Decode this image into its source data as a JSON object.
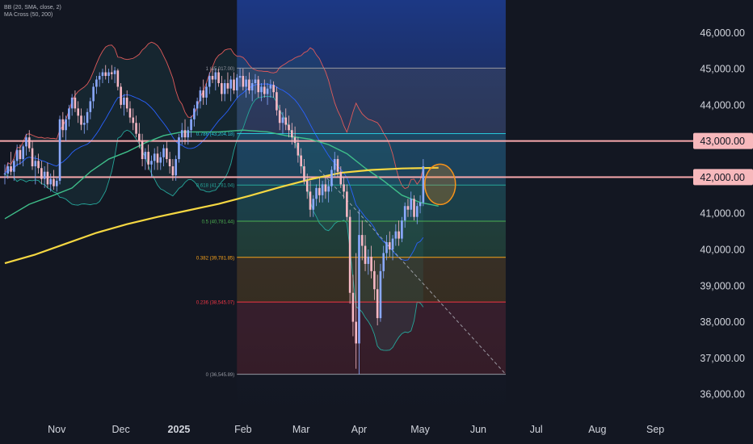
{
  "legend": {
    "bb": "BB (20, SMA, close, 2)",
    "ma": "MA Cross (50, 200)"
  },
  "colors": {
    "background": "#131722",
    "up": "#8aa9ff",
    "down": "#f7b8c4",
    "sma200": "#f5d742",
    "sma50": "#3fbf8a",
    "bb_basis": "#2962ff",
    "bb_band": "#e05a5a",
    "bb_band_lower": "#26a69a",
    "level_line": "#f7a8ad",
    "fib_zone": "#1e3a7a",
    "highlight": "#f7931a"
  },
  "chart_data": {
    "type": "candlestick",
    "title": "",
    "xlabel": "",
    "ylabel": "",
    "ylim": [
      35400,
      46900
    ],
    "y_ticks": [
      "46,000.00",
      "45,000.00",
      "44,000.00",
      "43,000.00",
      "42,000.00",
      "41,000.00",
      "40,000.00",
      "39,000.00",
      "38,000.00",
      "37,000.00",
      "36,000.00"
    ],
    "y_tick_values": [
      46000,
      45000,
      44000,
      43000,
      42000,
      41000,
      40000,
      39000,
      38000,
      37000,
      36000
    ],
    "highlighted_levels": [
      {
        "value": 43000,
        "label": "43,000.00"
      },
      {
        "value": 42000,
        "label": "42,000.00"
      }
    ],
    "x_labels": [
      "Nov",
      "Dec",
      "2025",
      "Feb",
      "Mar",
      "Apr",
      "May",
      "Jun",
      "Jul",
      "Aug",
      "Sep"
    ],
    "x_label_index": [
      17,
      38,
      57,
      78,
      97,
      116,
      136,
      155,
      174,
      194,
      213
    ],
    "x_label_bold": [
      false,
      false,
      true,
      false,
      false,
      false,
      false,
      false,
      false,
      false,
      false
    ],
    "fibonacci": {
      "start_index": 76,
      "end_index": 164,
      "levels": [
        {
          "ratio": "1",
          "value": 45017,
          "label": "1 (45,017.00)",
          "color": "#9598a1"
        },
        {
          "ratio": "0.786",
          "value": 43204.18,
          "label": "0.786 (43,204.18)",
          "color": "#26c6da"
        },
        {
          "ratio": "0.618",
          "value": 41781.04,
          "label": "0.618 (41,781.04)",
          "color": "#26a69a"
        },
        {
          "ratio": "0.5",
          "value": 40781.44,
          "label": "0.5 (40,781.44)",
          "color": "#4caf50"
        },
        {
          "ratio": "0.382",
          "value": 39781.85,
          "label": "0.382 (39,781.85)",
          "color": "#f7a21b"
        },
        {
          "ratio": "0.236",
          "value": 38545.07,
          "label": "0.236 (38,545.07)",
          "color": "#f23645"
        },
        {
          "ratio": "0",
          "value": 36545.89,
          "label": "0 (36,545.89)",
          "color": "#9598a1"
        }
      ]
    },
    "trendline": {
      "from_index": 103,
      "from_value": 42200,
      "to_index": 164,
      "to_value": 36550
    },
    "highlight_circle": {
      "index": 142,
      "value": 41800
    },
    "sma200_points": [
      [
        0,
        39620
      ],
      [
        10,
        39860
      ],
      [
        20,
        40160
      ],
      [
        30,
        40460
      ],
      [
        40,
        40700
      ],
      [
        50,
        40900
      ],
      [
        60,
        41080
      ],
      [
        70,
        41260
      ],
      [
        80,
        41480
      ],
      [
        90,
        41720
      ],
      [
        100,
        41940
      ],
      [
        110,
        42120
      ],
      [
        120,
        42200
      ],
      [
        130,
        42240
      ],
      [
        142,
        42260
      ]
    ],
    "sma50_points": [
      [
        0,
        40850
      ],
      [
        8,
        41250
      ],
      [
        16,
        41500
      ],
      [
        22,
        41700
      ],
      [
        28,
        42150
      ],
      [
        34,
        42500
      ],
      [
        40,
        42700
      ],
      [
        46,
        42950
      ],
      [
        52,
        43150
      ],
      [
        58,
        43250
      ],
      [
        64,
        43250
      ],
      [
        70,
        43250
      ],
      [
        78,
        43300
      ],
      [
        86,
        43250
      ],
      [
        92,
        43150
      ],
      [
        100,
        43050
      ],
      [
        106,
        42900
      ],
      [
        112,
        42650
      ],
      [
        118,
        42250
      ],
      [
        124,
        41900
      ],
      [
        130,
        41500
      ],
      [
        136,
        41300
      ],
      [
        142,
        41200
      ]
    ],
    "candles": [
      {
        "o": 42080,
        "h": 42350,
        "l": 41800,
        "c": 42100
      },
      {
        "o": 42100,
        "h": 42400,
        "l": 41950,
        "c": 42300
      },
      {
        "o": 42300,
        "h": 42700,
        "l": 42050,
        "c": 42150
      },
      {
        "o": 42150,
        "h": 42500,
        "l": 41900,
        "c": 42450
      },
      {
        "o": 42450,
        "h": 42900,
        "l": 42300,
        "c": 42750
      },
      {
        "o": 42750,
        "h": 42900,
        "l": 42350,
        "c": 42500
      },
      {
        "o": 42500,
        "h": 42900,
        "l": 42300,
        "c": 42850
      },
      {
        "o": 42850,
        "h": 43200,
        "l": 42600,
        "c": 43100
      },
      {
        "o": 43100,
        "h": 43300,
        "l": 42700,
        "c": 42800
      },
      {
        "o": 42800,
        "h": 43000,
        "l": 42200,
        "c": 42300
      },
      {
        "o": 42300,
        "h": 42600,
        "l": 41800,
        "c": 42450
      },
      {
        "o": 42450,
        "h": 42650,
        "l": 42100,
        "c": 42250
      },
      {
        "o": 42250,
        "h": 42450,
        "l": 41800,
        "c": 41950
      },
      {
        "o": 41950,
        "h": 42300,
        "l": 41700,
        "c": 42150
      },
      {
        "o": 42150,
        "h": 42400,
        "l": 41700,
        "c": 41800
      },
      {
        "o": 41800,
        "h": 42100,
        "l": 41600,
        "c": 41950
      },
      {
        "o": 41950,
        "h": 42200,
        "l": 41650,
        "c": 41750
      },
      {
        "o": 41750,
        "h": 42000,
        "l": 41600,
        "c": 41900
      },
      {
        "o": 41900,
        "h": 43700,
        "l": 41800,
        "c": 43600
      },
      {
        "o": 43600,
        "h": 43800,
        "l": 43100,
        "c": 43300
      },
      {
        "o": 43300,
        "h": 43700,
        "l": 43000,
        "c": 43600
      },
      {
        "o": 43600,
        "h": 44000,
        "l": 43400,
        "c": 43900
      },
      {
        "o": 43900,
        "h": 44300,
        "l": 43700,
        "c": 44200
      },
      {
        "o": 44200,
        "h": 44400,
        "l": 43800,
        "c": 43900
      },
      {
        "o": 43900,
        "h": 44100,
        "l": 43500,
        "c": 43700
      },
      {
        "o": 43700,
        "h": 43900,
        "l": 43300,
        "c": 43450
      },
      {
        "o": 43450,
        "h": 43700,
        "l": 43200,
        "c": 43500
      },
      {
        "o": 43500,
        "h": 43900,
        "l": 43300,
        "c": 43800
      },
      {
        "o": 43800,
        "h": 44200,
        "l": 43600,
        "c": 44100
      },
      {
        "o": 44100,
        "h": 44600,
        "l": 43900,
        "c": 44500
      },
      {
        "o": 44500,
        "h": 44800,
        "l": 44300,
        "c": 44700
      },
      {
        "o": 44700,
        "h": 44900,
        "l": 44500,
        "c": 44800
      },
      {
        "o": 44800,
        "h": 45000,
        "l": 44600,
        "c": 44900
      },
      {
        "o": 44900,
        "h": 45100,
        "l": 44700,
        "c": 44800
      },
      {
        "o": 44800,
        "h": 45000,
        "l": 44600,
        "c": 44900
      },
      {
        "o": 44900,
        "h": 45100,
        "l": 44700,
        "c": 44850
      },
      {
        "o": 44850,
        "h": 45050,
        "l": 44600,
        "c": 44950
      },
      {
        "o": 44950,
        "h": 45000,
        "l": 44400,
        "c": 44500
      },
      {
        "o": 44500,
        "h": 44600,
        "l": 43900,
        "c": 44000
      },
      {
        "o": 44000,
        "h": 44300,
        "l": 43700,
        "c": 44200
      },
      {
        "o": 44200,
        "h": 44400,
        "l": 43800,
        "c": 43900
      },
      {
        "o": 43900,
        "h": 44100,
        "l": 43500,
        "c": 43650
      },
      {
        "o": 43650,
        "h": 43900,
        "l": 43300,
        "c": 43500
      },
      {
        "o": 43500,
        "h": 43700,
        "l": 43100,
        "c": 43200
      },
      {
        "o": 43200,
        "h": 43500,
        "l": 42800,
        "c": 43000
      },
      {
        "o": 43000,
        "h": 43200,
        "l": 42300,
        "c": 42500
      },
      {
        "o": 42500,
        "h": 42800,
        "l": 42200,
        "c": 42700
      },
      {
        "o": 42700,
        "h": 42900,
        "l": 42200,
        "c": 42350
      },
      {
        "o": 42350,
        "h": 42600,
        "l": 42000,
        "c": 42450
      },
      {
        "o": 42450,
        "h": 42800,
        "l": 42200,
        "c": 42650
      },
      {
        "o": 42650,
        "h": 42850,
        "l": 42200,
        "c": 42400
      },
      {
        "o": 42400,
        "h": 42700,
        "l": 42200,
        "c": 42550
      },
      {
        "o": 42550,
        "h": 42900,
        "l": 42300,
        "c": 42800
      },
      {
        "o": 42800,
        "h": 43000,
        "l": 42400,
        "c": 42500
      },
      {
        "o": 42500,
        "h": 42700,
        "l": 42100,
        "c": 42300
      },
      {
        "o": 42300,
        "h": 42500,
        "l": 41900,
        "c": 42050
      },
      {
        "o": 42050,
        "h": 42600,
        "l": 41900,
        "c": 42500
      },
      {
        "o": 42500,
        "h": 43200,
        "l": 42400,
        "c": 43100
      },
      {
        "o": 43100,
        "h": 43500,
        "l": 42900,
        "c": 43300
      },
      {
        "o": 43300,
        "h": 43600,
        "l": 42900,
        "c": 43100
      },
      {
        "o": 43100,
        "h": 43400,
        "l": 42900,
        "c": 43300
      },
      {
        "o": 43300,
        "h": 43700,
        "l": 43100,
        "c": 43600
      },
      {
        "o": 43600,
        "h": 44000,
        "l": 43400,
        "c": 43900
      },
      {
        "o": 43900,
        "h": 44200,
        "l": 43700,
        "c": 44100
      },
      {
        "o": 44100,
        "h": 44500,
        "l": 43900,
        "c": 44400
      },
      {
        "o": 44400,
        "h": 44700,
        "l": 44000,
        "c": 44200
      },
      {
        "o": 44200,
        "h": 44600,
        "l": 44000,
        "c": 44500
      },
      {
        "o": 44500,
        "h": 44900,
        "l": 44300,
        "c": 44800
      },
      {
        "o": 44800,
        "h": 45000,
        "l": 44600,
        "c": 44700
      },
      {
        "o": 44700,
        "h": 45000,
        "l": 44400,
        "c": 44900
      },
      {
        "o": 44900,
        "h": 45000,
        "l": 44500,
        "c": 44600
      },
      {
        "o": 44600,
        "h": 44800,
        "l": 44100,
        "c": 44300
      },
      {
        "o": 44300,
        "h": 44700,
        "l": 44100,
        "c": 44600
      },
      {
        "o": 44600,
        "h": 44900,
        "l": 44300,
        "c": 44450
      },
      {
        "o": 44450,
        "h": 44800,
        "l": 44100,
        "c": 44700
      },
      {
        "o": 44700,
        "h": 44900,
        "l": 44300,
        "c": 44400
      },
      {
        "o": 44400,
        "h": 44850,
        "l": 44200,
        "c": 44750
      },
      {
        "o": 44750,
        "h": 45017,
        "l": 44500,
        "c": 44800
      },
      {
        "o": 44800,
        "h": 45000,
        "l": 44400,
        "c": 44500
      },
      {
        "o": 44500,
        "h": 44800,
        "l": 44200,
        "c": 44700
      },
      {
        "o": 44700,
        "h": 44900,
        "l": 44300,
        "c": 44400
      },
      {
        "o": 44400,
        "h": 44700,
        "l": 44100,
        "c": 44600
      },
      {
        "o": 44600,
        "h": 44850,
        "l": 44300,
        "c": 44700
      },
      {
        "o": 44700,
        "h": 44800,
        "l": 44200,
        "c": 44350
      },
      {
        "o": 44350,
        "h": 44600,
        "l": 44100,
        "c": 44500
      },
      {
        "o": 44500,
        "h": 44700,
        "l": 44200,
        "c": 44300
      },
      {
        "o": 44300,
        "h": 44600,
        "l": 44000,
        "c": 44450
      },
      {
        "o": 44450,
        "h": 44700,
        "l": 44200,
        "c": 44550
      },
      {
        "o": 44550,
        "h": 44650,
        "l": 44200,
        "c": 44350
      },
      {
        "o": 44350,
        "h": 44500,
        "l": 43700,
        "c": 43850
      },
      {
        "o": 43850,
        "h": 44000,
        "l": 43300,
        "c": 43500
      },
      {
        "o": 43500,
        "h": 43800,
        "l": 43200,
        "c": 43650
      },
      {
        "o": 43650,
        "h": 43900,
        "l": 43300,
        "c": 43450
      },
      {
        "o": 43450,
        "h": 43700,
        "l": 43100,
        "c": 43300
      },
      {
        "o": 43300,
        "h": 43500,
        "l": 42900,
        "c": 43100
      },
      {
        "o": 43100,
        "h": 43400,
        "l": 42800,
        "c": 42950
      },
      {
        "o": 42950,
        "h": 43100,
        "l": 42400,
        "c": 42600
      },
      {
        "o": 42600,
        "h": 42800,
        "l": 42100,
        "c": 42300
      },
      {
        "o": 42300,
        "h": 42500,
        "l": 41800,
        "c": 41900
      },
      {
        "o": 41900,
        "h": 42100,
        "l": 41400,
        "c": 41600
      },
      {
        "o": 41600,
        "h": 41900,
        "l": 40900,
        "c": 41100
      },
      {
        "o": 41100,
        "h": 41500,
        "l": 40900,
        "c": 41400
      },
      {
        "o": 41400,
        "h": 41800,
        "l": 41200,
        "c": 41700
      },
      {
        "o": 41700,
        "h": 42000,
        "l": 41300,
        "c": 41500
      },
      {
        "o": 41500,
        "h": 41900,
        "l": 41300,
        "c": 41800
      },
      {
        "o": 41800,
        "h": 42000,
        "l": 41400,
        "c": 41600
      },
      {
        "o": 41600,
        "h": 41900,
        "l": 41300,
        "c": 41750
      },
      {
        "o": 41750,
        "h": 42300,
        "l": 41600,
        "c": 42200
      },
      {
        "o": 42200,
        "h": 42700,
        "l": 42000,
        "c": 42500
      },
      {
        "o": 42500,
        "h": 42600,
        "l": 42000,
        "c": 42150
      },
      {
        "o": 42150,
        "h": 42300,
        "l": 41700,
        "c": 41800
      },
      {
        "o": 41800,
        "h": 42000,
        "l": 41400,
        "c": 41600
      },
      {
        "o": 41600,
        "h": 41800,
        "l": 40800,
        "c": 40900
      },
      {
        "o": 40900,
        "h": 41100,
        "l": 38500,
        "c": 38800
      },
      {
        "o": 38800,
        "h": 39300,
        "l": 37600,
        "c": 38000
      },
      {
        "o": 38000,
        "h": 39900,
        "l": 36700,
        "c": 37400
      },
      {
        "o": 37400,
        "h": 41100,
        "l": 36545,
        "c": 40400
      },
      {
        "o": 40400,
        "h": 40800,
        "l": 39700,
        "c": 40100
      },
      {
        "o": 40100,
        "h": 40400,
        "l": 39400,
        "c": 39600
      },
      {
        "o": 39600,
        "h": 40000,
        "l": 39300,
        "c": 39800
      },
      {
        "o": 39800,
        "h": 40100,
        "l": 39200,
        "c": 39400
      },
      {
        "o": 39400,
        "h": 39700,
        "l": 38600,
        "c": 38900
      },
      {
        "o": 38900,
        "h": 39300,
        "l": 37900,
        "c": 38100
      },
      {
        "o": 38100,
        "h": 39600,
        "l": 38000,
        "c": 39400
      },
      {
        "o": 39400,
        "h": 40100,
        "l": 39200,
        "c": 39900
      },
      {
        "o": 39900,
        "h": 40400,
        "l": 39700,
        "c": 40200
      },
      {
        "o": 40200,
        "h": 40500,
        "l": 39800,
        "c": 40000
      },
      {
        "o": 40000,
        "h": 40400,
        "l": 39700,
        "c": 40300
      },
      {
        "o": 40300,
        "h": 40700,
        "l": 40100,
        "c": 40500
      },
      {
        "o": 40500,
        "h": 40800,
        "l": 40100,
        "c": 40300
      },
      {
        "o": 40300,
        "h": 40900,
        "l": 40200,
        "c": 40800
      },
      {
        "o": 40800,
        "h": 41300,
        "l": 40600,
        "c": 41200
      },
      {
        "o": 41200,
        "h": 41400,
        "l": 40900,
        "c": 41100
      },
      {
        "o": 41100,
        "h": 41600,
        "l": 40900,
        "c": 41400
      },
      {
        "o": 41400,
        "h": 41500,
        "l": 40800,
        "c": 40900
      },
      {
        "o": 40900,
        "h": 41300,
        "l": 40700,
        "c": 41200
      },
      {
        "o": 41200,
        "h": 41500,
        "l": 41000,
        "c": 41300
      },
      {
        "o": 41300,
        "h": 42500,
        "l": 41200,
        "c": 42300
      }
    ]
  }
}
